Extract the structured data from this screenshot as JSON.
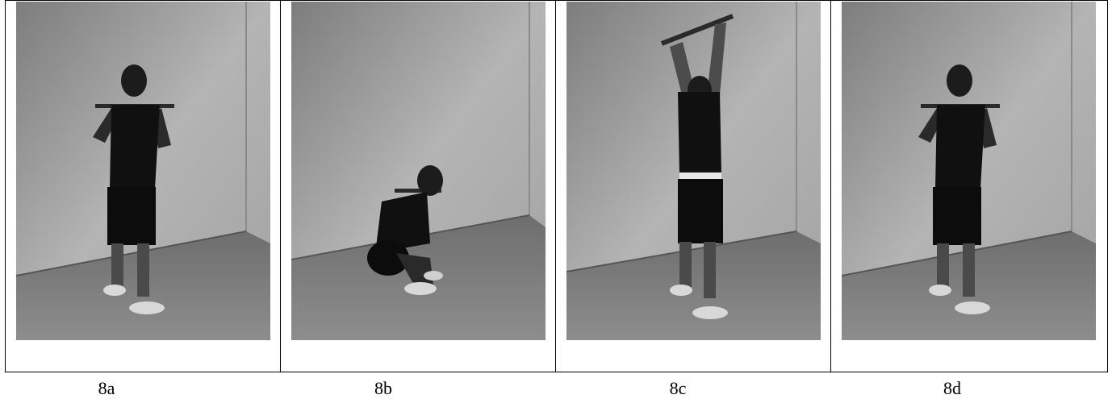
{
  "figure": {
    "panels": [
      {
        "caption": "8a",
        "photo_icon": "person-standing-bar-on-shoulders-icon"
      },
      {
        "caption": "8b",
        "photo_icon": "person-squatting-bar-on-shoulders-icon"
      },
      {
        "caption": "8c",
        "photo_icon": "person-standing-bar-overhead-icon"
      },
      {
        "caption": "8d",
        "photo_icon": "person-standing-bar-on-shoulders-icon"
      }
    ]
  }
}
